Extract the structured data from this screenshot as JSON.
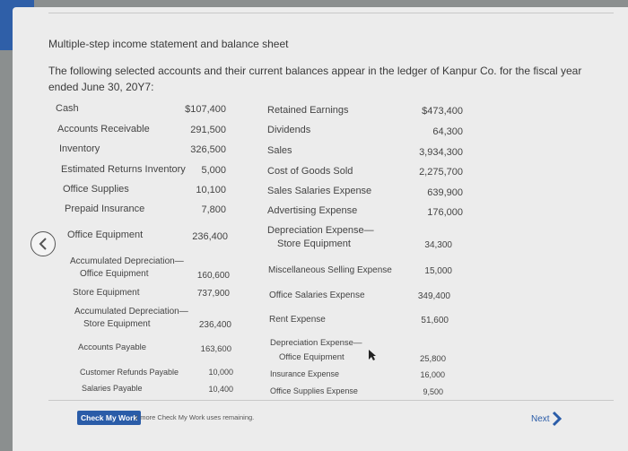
{
  "title": "Multiple-step income statement and balance sheet",
  "intro": "The following selected accounts and their current balances appear in the ledger of Kanpur Co. for the fiscal year ended June 30, 20Y7:",
  "left_accounts": [
    {
      "label": "Cash",
      "value": "$107,400"
    },
    {
      "label": "Accounts Receivable",
      "value": "291,500"
    },
    {
      "label": "Inventory",
      "value": "326,500"
    },
    {
      "label": "Estimated Returns Inventory",
      "value": "5,000"
    },
    {
      "label": "Office Supplies",
      "value": "10,100"
    },
    {
      "label": "Prepaid Insurance",
      "value": "7,800"
    },
    {
      "label": "Office Equipment",
      "value": "236,400"
    },
    {
      "label": "Accumulated Depreciation—",
      "label2": "Office Equipment",
      "value": "160,600"
    },
    {
      "label": "Store Equipment",
      "value": "737,900"
    },
    {
      "label": "Accumulated Depreciation—",
      "label2": "Store Equipment",
      "value": "236,400"
    },
    {
      "label": "Accounts Payable",
      "value": "163,600"
    },
    {
      "label": "Customer Refunds Payable",
      "value": "10,000"
    },
    {
      "label": "Salaries Payable",
      "value": "10,400"
    }
  ],
  "right_accounts": [
    {
      "label": "Retained Earnings",
      "value": "$473,400"
    },
    {
      "label": "Dividends",
      "value": "64,300"
    },
    {
      "label": "Sales",
      "value": "3,934,300"
    },
    {
      "label": "Cost of Goods Sold",
      "value": "2,275,700"
    },
    {
      "label": "Sales Salaries Expense",
      "value": "639,900"
    },
    {
      "label": "Advertising Expense",
      "value": "176,000"
    },
    {
      "label": "Depreciation Expense—",
      "label2": "Store Equipment",
      "value": "34,300"
    },
    {
      "label": "Miscellaneous Selling Expense",
      "value": "15,000"
    },
    {
      "label": "Office Salaries Expense",
      "value": "349,400"
    },
    {
      "label": "Rent Expense",
      "value": "51,600"
    },
    {
      "label": "Depreciation Expense—",
      "label2": "Office Equipment",
      "value": "25,800"
    },
    {
      "label": "Insurance Expense",
      "value": "16,000"
    },
    {
      "label": "Office Supplies Expense",
      "value": "9,500"
    }
  ],
  "check_button": "Check My Work",
  "remaining_text": "2 more Check My Work uses remaining.",
  "next_label": "Next",
  "icons": {
    "back": "chevron-left-icon",
    "next": "chevron-right-icon"
  },
  "colors": {
    "accent": "#2a5ca8"
  }
}
